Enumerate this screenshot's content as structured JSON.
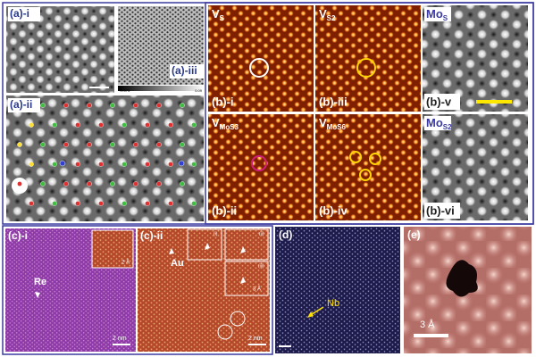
{
  "panel_a": {
    "labels": [
      "(a)-i",
      "(a)-iii",
      "(a)-ii"
    ],
    "colorbar": [
      "-0.075",
      "0.09"
    ]
  },
  "panel_b": {
    "images": [
      {
        "label": "(b)-i",
        "defect": {
          "main": "V",
          "sub": "S"
        }
      },
      {
        "label": "(b)-iii",
        "defect": {
          "main": "V",
          "sub": "S2"
        }
      },
      {
        "label": "(b)-v",
        "defect": {
          "main": "Mo",
          "sub": "S"
        }
      },
      {
        "label": "(b)-ii",
        "defect": {
          "main": "V",
          "sub": "MoS3"
        }
      },
      {
        "label": "(b)-iv",
        "defect": {
          "main": "V",
          "sub": "MoS6"
        }
      },
      {
        "label": "(b)-vi",
        "defect": {
          "main": "Mo",
          "sub": "S2"
        }
      }
    ]
  },
  "panel_c": {
    "labels": [
      "(c)-i",
      "(c)-ii"
    ],
    "annotations": [
      "Re",
      "Au"
    ],
    "scale_bars": [
      "2 Å",
      "2 nm",
      "3 Å",
      "2 nm"
    ],
    "insets": [
      "(i)",
      "(ii)",
      "(iii)"
    ]
  },
  "panel_d": {
    "label": "(d)",
    "annotation": "Nb"
  },
  "panel_e": {
    "label": "(e)",
    "scale_bar": "3 Å"
  }
}
